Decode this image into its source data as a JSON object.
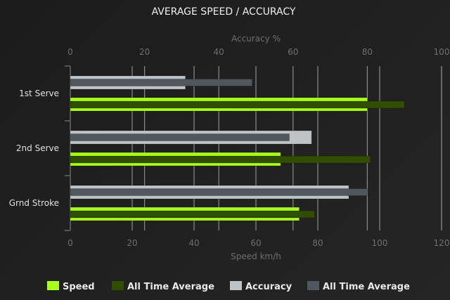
{
  "chart_data": {
    "type": "bar",
    "orientation": "horizontal",
    "title": "AVERAGE SPEED / ACCURACY",
    "categories": [
      "1st Serve",
      "2nd Serve",
      "Grnd Stroke"
    ],
    "top_axis": {
      "label": "Accuracy %",
      "range": [
        0,
        100
      ],
      "ticks": [
        0,
        20,
        40,
        60,
        80,
        100
      ]
    },
    "bottom_axis": {
      "label": "Speed km/h",
      "range": [
        0,
        120
      ],
      "ticks": [
        0,
        20,
        40,
        60,
        80,
        100,
        120
      ]
    },
    "grid": true,
    "legend_position": "bottom",
    "series": [
      {
        "name": "Speed",
        "axis": "bottom",
        "color": "#a8ff1e",
        "values": [
          96,
          68,
          74
        ]
      },
      {
        "name": "All Time Average",
        "axis": "bottom",
        "color": "#304d00",
        "values": [
          108,
          97,
          79
        ]
      },
      {
        "name": "Accuracy",
        "axis": "top",
        "color": "#bfc3c5",
        "values": [
          31,
          65,
          75
        ]
      },
      {
        "name": "All Time Average",
        "axis": "top",
        "color": "#52575e",
        "values": [
          49,
          59,
          80
        ]
      }
    ]
  }
}
